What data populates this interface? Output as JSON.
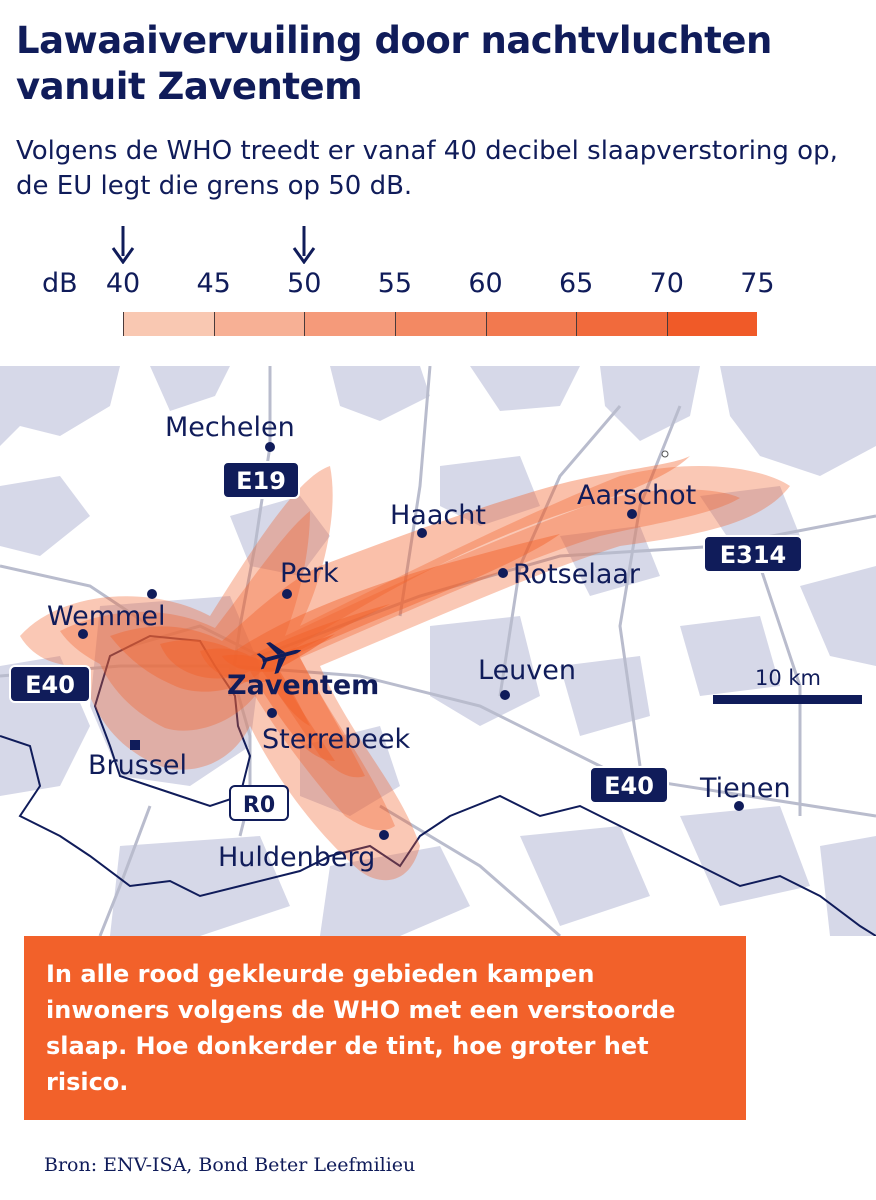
{
  "header": {
    "title": "Lawaaivervuiling door nachtvluchten vanuit Zaventem",
    "subtitle": "Volgens de WHO treedt er vanaf 40 decibel slaapverstoring op, de EU legt die grens op 50 dB."
  },
  "legend": {
    "unit": "dB",
    "ticks": [
      "40",
      "45",
      "50",
      "55",
      "60",
      "65",
      "70",
      "75"
    ],
    "tick_values": [
      40,
      45,
      50,
      55,
      60,
      65,
      70,
      75
    ],
    "range_max": 80,
    "arrows_at": [
      40,
      50
    ],
    "colors": [
      "#f9c8b2",
      "#f7b095",
      "#f59a7a",
      "#f38963",
      "#f2794f",
      "#f16a3c",
      "#f05a28"
    ]
  },
  "map": {
    "places": {
      "mechelen": "Mechelen",
      "haacht": "Haacht",
      "aarschot": "Aarschot",
      "perk": "Perk",
      "rotselaar": "Rotselaar",
      "wemmel": "Wemmel",
      "zaventem": "Zaventem",
      "leuven": "Leuven",
      "sterrebeek": "Sterrebeek",
      "brussel": "Brussel",
      "tienen": "Tienen",
      "huldenberg": "Huldenberg"
    },
    "roads": {
      "e19": "E19",
      "e314": "E314",
      "e40_west": "E40",
      "e40_east": "E40",
      "r0": "R0"
    },
    "scale_label": "10 km",
    "colors": {
      "urban": "#d6d8e8",
      "roads": "#b9bccd",
      "border": "#101c5a",
      "noise": "#f2612a",
      "badge": "#101c5a"
    },
    "icons": [
      "airplane-icon",
      "location-dot-icon"
    ]
  },
  "callout": {
    "text": "In alle rood gekleurde gebieden kampen inwoners volgens de WHO met een verstoorde slaap. Hoe donkerder de tint, hoe groter het risico."
  },
  "footer": {
    "source": "Bron: ENV-ISA, Bond Beter Leefmilieu"
  }
}
